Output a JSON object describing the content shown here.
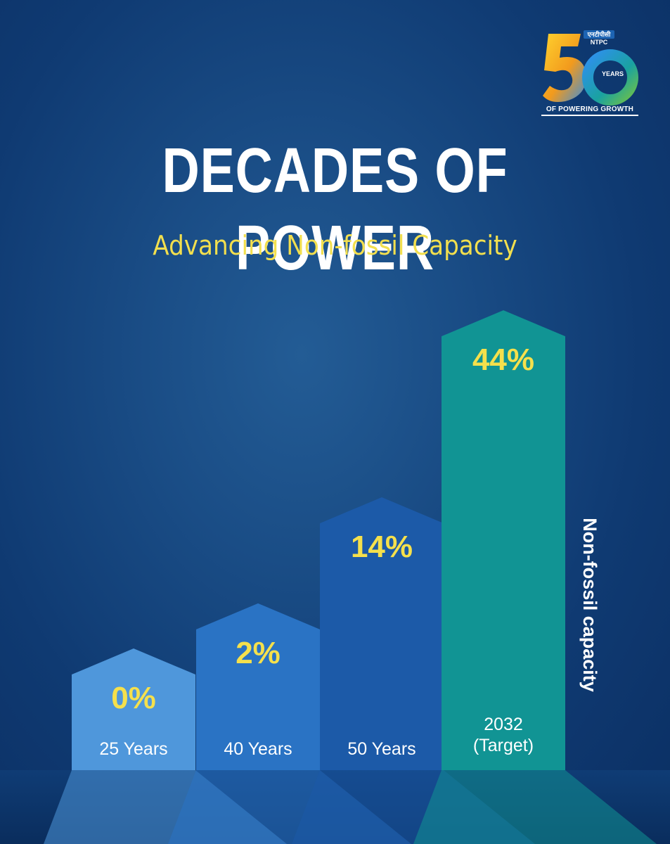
{
  "logo": {
    "hindi": "एनटीपीसी",
    "name": "NTPC",
    "number": "50",
    "years": "YEARS",
    "tagline": "OF POWERING GROWTH"
  },
  "header": {
    "title": "DECADES OF POWER",
    "subtitle": "Advancing Non-fossil Capacity"
  },
  "colors": {
    "value_labels": "#f5e04c",
    "bars": [
      "#4f97db",
      "#2a73c4",
      "#1c5aa8",
      "#119494"
    ]
  },
  "chart_data": {
    "type": "bar",
    "categories": [
      "25 Years",
      "40 Years",
      "50 Years",
      "2032 (Target)"
    ],
    "category_lines": [
      [
        "25 Years"
      ],
      [
        "40 Years"
      ],
      [
        "50 Years"
      ],
      [
        "2032",
        "(Target)"
      ]
    ],
    "values": [
      0,
      2,
      14,
      44
    ],
    "value_labels": [
      "0%",
      "2%",
      "14%",
      "44%"
    ],
    "ylabel": "Non-fossil capacity",
    "title": "",
    "bar_shape": "arrow-up"
  }
}
